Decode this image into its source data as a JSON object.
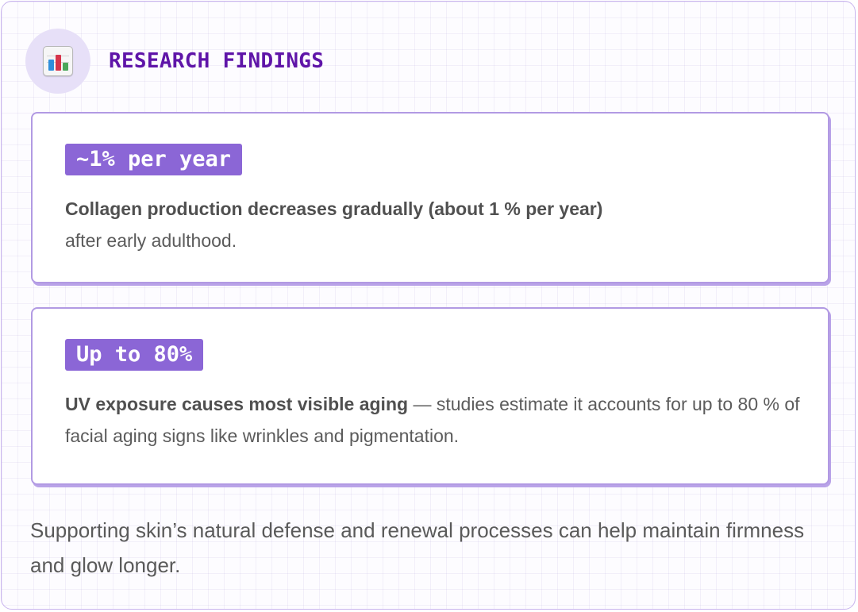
{
  "header": {
    "title": "RESEARCH FINDINGS",
    "icon": "bar-chart-icon"
  },
  "findings": [
    {
      "badge": "~1% per year",
      "headline": "Collagen production decreases gradually (about 1 % per year)",
      "detail": "after early adulthood."
    },
    {
      "badge": "Up to 80%",
      "headline": "UV exposure causes most visible aging",
      "detail": " — studies estimate it accounts for up to 80 % of facial aging signs like wrinkles and pigmentation."
    }
  ],
  "footer": {
    "text": "Supporting skin’s natural defense and renewal processes can help maintain firmness and glow longer."
  },
  "colors": {
    "accent": "#5f15a8",
    "badge": "#8b66d6",
    "card_border": "#b29ae3",
    "icon_background": "#e7e0f8"
  }
}
